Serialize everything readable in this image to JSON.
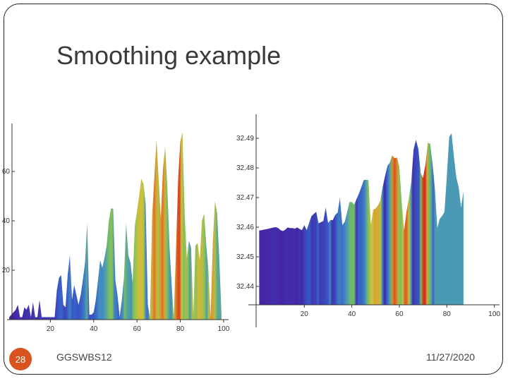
{
  "slide": {
    "title": "Smoothing example",
    "footer_text": "GGSWBS12",
    "date": "11/27/2020",
    "slide_number": "28"
  },
  "chart_data": [
    {
      "type": "area",
      "title": "",
      "xlabel": "",
      "ylabel": "",
      "xlim": [
        0,
        101
      ],
      "ylim": [
        0,
        78
      ],
      "xticks": [
        20,
        40,
        60,
        80,
        100
      ],
      "yticks": [
        20,
        40,
        60
      ],
      "series": [
        {
          "points": [
            [
              1,
              1
            ],
            [
              2,
              2
            ],
            [
              3,
              3
            ],
            [
              4,
              4
            ],
            [
              5,
              6
            ],
            [
              6,
              1
            ],
            [
              7,
              1
            ],
            [
              8,
              5
            ],
            [
              9,
              4
            ],
            [
              10,
              6
            ],
            [
              11,
              1
            ],
            [
              12,
              7
            ],
            [
              13,
              1
            ],
            [
              14,
              1
            ],
            [
              15,
              8
            ],
            [
              16,
              1
            ],
            [
              17,
              1
            ],
            [
              18,
              1
            ],
            [
              19,
              1
            ],
            [
              20,
              1
            ],
            [
              21,
              1
            ],
            [
              22,
              1
            ],
            [
              23,
              12
            ],
            [
              24,
              17
            ],
            [
              25,
              18
            ],
            [
              26,
              6
            ],
            [
              27,
              5
            ],
            [
              28,
              18
            ],
            [
              29,
              26
            ],
            [
              30,
              8
            ],
            [
              31,
              14
            ],
            [
              32,
              10
            ],
            [
              33,
              6
            ],
            [
              34,
              10
            ],
            [
              35,
              16
            ],
            [
              36,
              23
            ],
            [
              37,
              39
            ],
            [
              38,
              2
            ],
            [
              39,
              2
            ],
            [
              40,
              3
            ],
            [
              41,
              8
            ],
            [
              42,
              16
            ],
            [
              43,
              24
            ],
            [
              44,
              21
            ],
            [
              45,
              25
            ],
            [
              46,
              30
            ],
            [
              47,
              40
            ],
            [
              48,
              45
            ],
            [
              49,
              45
            ],
            [
              50,
              16
            ],
            [
              51,
              10
            ],
            [
              52,
              1
            ],
            [
              53,
              8
            ],
            [
              54,
              17
            ],
            [
              55,
              39
            ],
            [
              56,
              26
            ],
            [
              57,
              23
            ],
            [
              58,
              15
            ],
            [
              59,
              38
            ],
            [
              60,
              44
            ],
            [
              61,
              50
            ],
            [
              62,
              57
            ],
            [
              63,
              55
            ],
            [
              64,
              47
            ],
            [
              65,
              6
            ],
            [
              66,
              1
            ],
            [
              67,
              42
            ],
            [
              68,
              57
            ],
            [
              69,
              73
            ],
            [
              70,
              57
            ],
            [
              71,
              41
            ],
            [
              72,
              61
            ],
            [
              73,
              70
            ],
            [
              74,
              54
            ],
            [
              75,
              30
            ],
            [
              76,
              14
            ],
            [
              77,
              1
            ],
            [
              78,
              28
            ],
            [
              79,
              57
            ],
            [
              80,
              72
            ],
            [
              81,
              76
            ],
            [
              82,
              43
            ],
            [
              83,
              25
            ],
            [
              84,
              32
            ],
            [
              85,
              29
            ],
            [
              86,
              2
            ],
            [
              87,
              30
            ],
            [
              88,
              31
            ],
            [
              89,
              24
            ],
            [
              90,
              40
            ],
            [
              91,
              43
            ],
            [
              92,
              30
            ],
            [
              93,
              20
            ],
            [
              94,
              1
            ],
            [
              95,
              31
            ],
            [
              96,
              48
            ],
            [
              97,
              43
            ],
            [
              98,
              25
            ],
            [
              99,
              2
            ]
          ]
        }
      ]
    },
    {
      "type": "area",
      "title": "",
      "xlabel": "",
      "ylabel": "",
      "xlim": [
        0,
        101
      ],
      "ylim": [
        32.4338,
        32.4962
      ],
      "xticks": [
        20,
        40,
        60,
        80,
        100
      ],
      "yticks": [
        32.44,
        32.45,
        32.46,
        32.47,
        32.48,
        32.49
      ],
      "series": [
        {
          "points": [
            [
              1,
              32.4589
            ],
            [
              2,
              32.459
            ],
            [
              3,
              32.4592
            ],
            [
              4,
              32.4593
            ],
            [
              5,
              32.4595
            ],
            [
              6,
              32.4597
            ],
            [
              7,
              32.4599
            ],
            [
              8,
              32.46
            ],
            [
              9,
              32.4597
            ],
            [
              10,
              32.459
            ],
            [
              11,
              32.4587
            ],
            [
              12,
              32.4592
            ],
            [
              13,
              32.4599
            ],
            [
              14,
              32.4597
            ],
            [
              15,
              32.4597
            ],
            [
              16,
              32.4595
            ],
            [
              17,
              32.4599
            ],
            [
              18,
              32.4594
            ],
            [
              19,
              32.459
            ],
            [
              20,
              32.4607
            ],
            [
              21,
              32.459
            ],
            [
              22,
              32.4614
            ],
            [
              23,
              32.4637
            ],
            [
              24,
              32.4645
            ],
            [
              25,
              32.4652
            ],
            [
              26,
              32.4613
            ],
            [
              27,
              32.4617
            ],
            [
              28,
              32.4621
            ],
            [
              29,
              32.4666
            ],
            [
              30,
              32.4614
            ],
            [
              31,
              32.4624
            ],
            [
              32,
              32.4624
            ],
            [
              33,
              32.4641
            ],
            [
              34,
              32.4649
            ],
            [
              35,
              32.4699
            ],
            [
              36,
              32.4607
            ],
            [
              37,
              32.4618
            ],
            [
              38,
              32.4649
            ],
            [
              39,
              32.4685
            ],
            [
              40,
              32.4685
            ],
            [
              41,
              32.4676
            ],
            [
              42,
              32.4695
            ],
            [
              43,
              32.4714
            ],
            [
              44,
              32.4735
            ],
            [
              45,
              32.4759
            ],
            [
              46,
              32.476
            ],
            [
              47,
              32.4759
            ],
            [
              48,
              32.4608
            ],
            [
              49,
              32.4659
            ],
            [
              50,
              32.4663
            ],
            [
              51,
              32.4673
            ],
            [
              52,
              32.469
            ],
            [
              53,
              32.4736
            ],
            [
              54,
              32.4773
            ],
            [
              55,
              32.4807
            ],
            [
              56,
              32.4818
            ],
            [
              57,
              32.4843
            ],
            [
              58,
              32.4833
            ],
            [
              59,
              32.4835
            ],
            [
              60,
              32.4804
            ],
            [
              61,
              32.4686
            ],
            [
              62,
              32.4588
            ],
            [
              63,
              32.4652
            ],
            [
              64,
              32.4697
            ],
            [
              65,
              32.475
            ],
            [
              66,
              32.4862
            ],
            [
              67,
              32.4895
            ],
            [
              68,
              32.4865
            ],
            [
              69,
              32.4783
            ],
            [
              70,
              32.4766
            ],
            [
              71,
              32.4812
            ],
            [
              72,
              32.4885
            ],
            [
              73,
              32.4882
            ],
            [
              74,
              32.4813
            ],
            [
              75,
              32.4726
            ],
            [
              76,
              32.4597
            ],
            [
              77,
              32.4628
            ],
            [
              78,
              32.4638
            ],
            [
              79,
              32.4651
            ],
            [
              80,
              32.4772
            ],
            [
              81,
              32.4905
            ],
            [
              82,
              32.4917
            ],
            [
              83,
              32.4836
            ],
            [
              84,
              32.4767
            ],
            [
              85,
              32.4735
            ],
            [
              86,
              32.4666
            ],
            [
              87,
              32.4721
            ]
          ]
        }
      ]
    }
  ]
}
